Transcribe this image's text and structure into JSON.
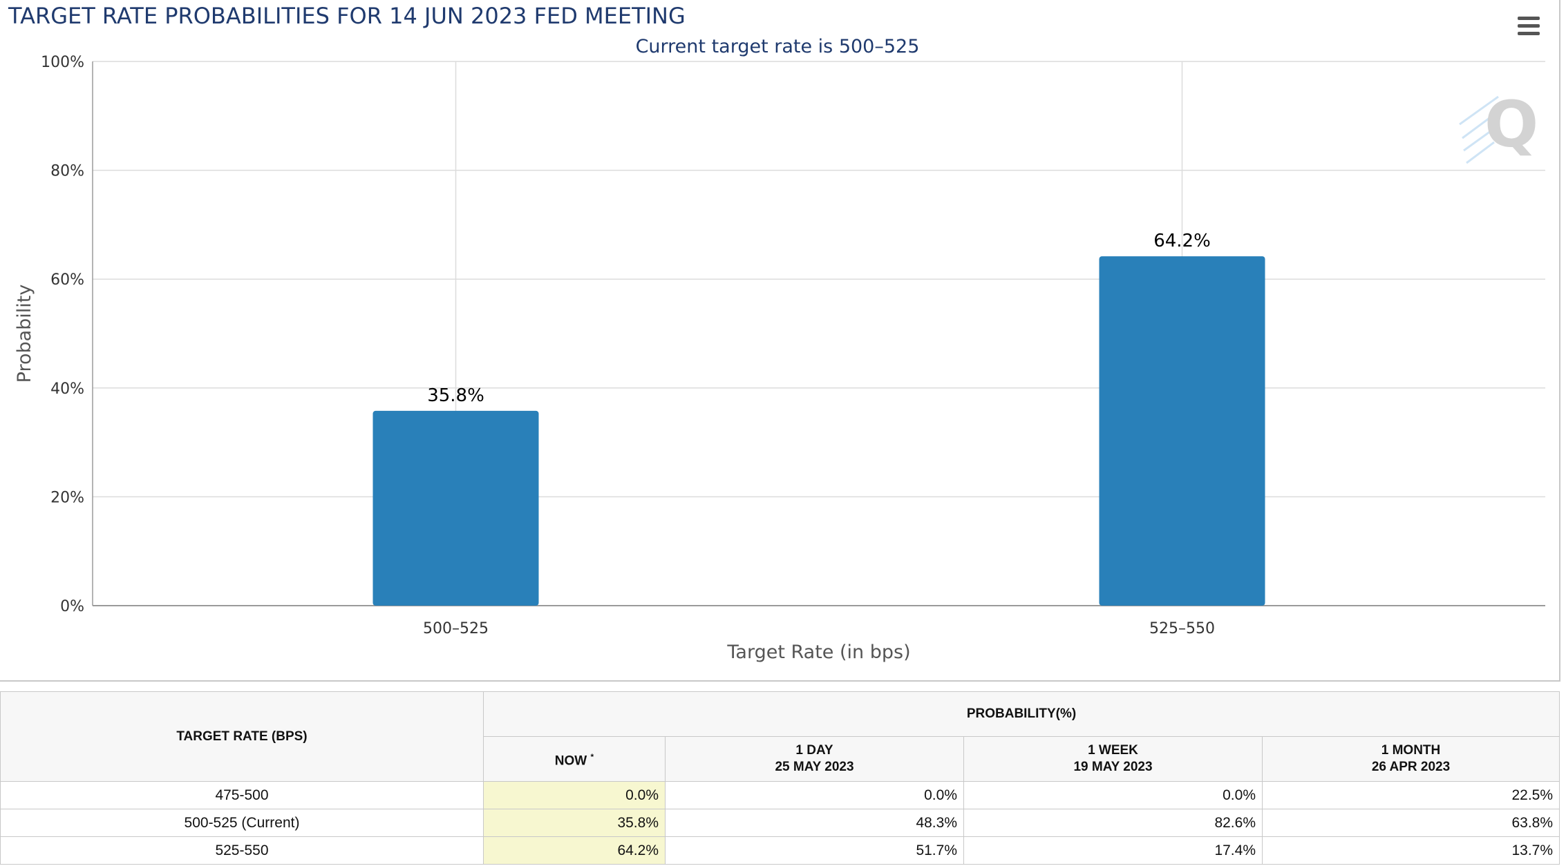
{
  "chart_title": "TARGET RATE PROBABILITIES FOR 14 JUN 2023 FED MEETING",
  "menu_icon": "hamburger-menu-icon",
  "watermark_icon": "q-logo-watermark",
  "bar_color": "#2980b9",
  "chart_data": {
    "type": "bar",
    "title": "TARGET RATE PROBABILITIES FOR 14 JUN 2023 FED MEETING",
    "subtitle": "Current target rate is 500–525",
    "xlabel": "Target Rate (in bps)",
    "ylabel": "Probability",
    "categories": [
      "500–525",
      "525–550"
    ],
    "values": [
      35.8,
      64.2
    ],
    "value_labels": [
      "35.8%",
      "64.2%"
    ],
    "ylim": [
      0,
      100
    ],
    "yticks": [
      "0%",
      "20%",
      "40%",
      "60%",
      "80%",
      "100%"
    ],
    "grid": true,
    "legend": "none"
  },
  "table": {
    "target_rate_header": "TARGET RATE (BPS)",
    "probability_header": "PROBABILITY(%)",
    "columns": [
      {
        "label": "NOW",
        "sub": "",
        "marker": "*"
      },
      {
        "label": "1 DAY",
        "sub": "25 MAY 2023",
        "marker": ""
      },
      {
        "label": "1 WEEK",
        "sub": "19 MAY 2023",
        "marker": ""
      },
      {
        "label": "1 MONTH",
        "sub": "26 APR 2023",
        "marker": ""
      }
    ],
    "rows": [
      {
        "rate": "475-500",
        "values": [
          "0.0%",
          "0.0%",
          "0.0%",
          "22.5%"
        ]
      },
      {
        "rate": "500-525 (Current)",
        "values": [
          "35.8%",
          "48.3%",
          "82.6%",
          "63.8%"
        ]
      },
      {
        "rate": "525-550",
        "values": [
          "64.2%",
          "51.7%",
          "17.4%",
          "13.7%"
        ]
      }
    ]
  }
}
